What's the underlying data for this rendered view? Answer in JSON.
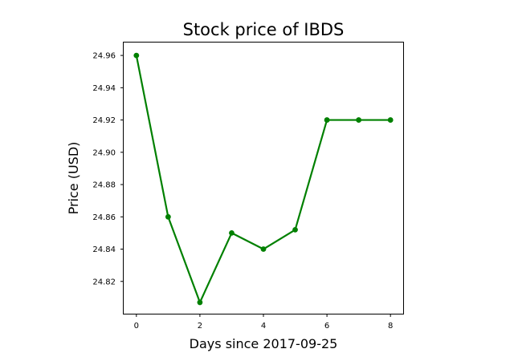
{
  "chart_data": {
    "type": "line",
    "title": "Stock price of IBDS",
    "xlabel": "Days since 2017-09-25",
    "ylabel": "Price (USD)",
    "x": [
      0,
      1,
      2,
      3,
      4,
      5,
      6,
      7,
      8
    ],
    "series": [
      {
        "values": [
          24.96,
          24.86,
          24.807,
          24.85,
          24.84,
          24.852,
          24.92,
          24.92,
          24.92
        ],
        "color": "#008000"
      }
    ],
    "xlim": [
      -0.4,
      8.4
    ],
    "ylim": [
      24.8,
      24.968
    ],
    "xticks": [
      0,
      2,
      4,
      6,
      8
    ],
    "xtick_labels": [
      "0",
      "2",
      "4",
      "6",
      "8"
    ],
    "yticks": [
      24.82,
      24.84,
      24.86,
      24.88,
      24.9,
      24.92,
      24.94,
      24.96
    ],
    "ytick_labels": [
      "24.82",
      "24.84",
      "24.86",
      "24.88",
      "24.90",
      "24.92",
      "24.94",
      "24.96"
    ],
    "grid": false,
    "markers": true
  }
}
